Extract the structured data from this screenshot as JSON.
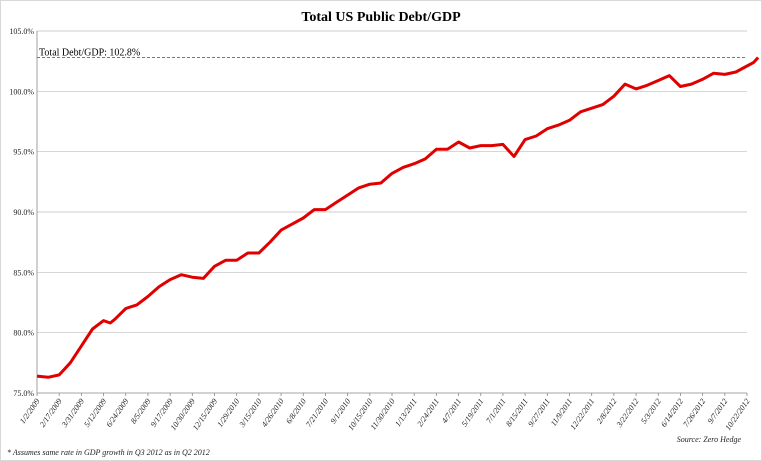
{
  "chart_data": {
    "type": "line",
    "title": "Total US Public Debt/GDP",
    "ylim": [
      75,
      105
    ],
    "yticks": [
      "75.0%",
      "80.0%",
      "85.0%",
      "90.0%",
      "95.0%",
      "100.0%",
      "105.0%"
    ],
    "ytick_values": [
      75,
      80,
      85,
      90,
      95,
      100,
      105
    ],
    "x_tick_labels": [
      "1/2/2009",
      "2/17/2009",
      "3/31/2009",
      "5/12/2009",
      "6/24/2009",
      "8/5/2009",
      "9/17/2009",
      "10/30/2009",
      "12/15/2009",
      "1/29/2010",
      "3/15/2010",
      "4/26/2010",
      "6/8/2010",
      "7/21/2010",
      "9/1/2010",
      "10/15/2010",
      "11/30/2010",
      "1/13/2011",
      "2/24/2011",
      "4/7/2011",
      "5/19/2011",
      "7/1/2011",
      "8/15/2011",
      "9/27/2011",
      "11/9/2011",
      "12/22/2011",
      "2/8/2012",
      "3/22/2012",
      "5/3/2012",
      "6/14/2012",
      "7/26/2012",
      "9/7/2012",
      "10/22/2012"
    ],
    "grid": true,
    "reference_line": {
      "value": 102.8,
      "label": "Total Debt/GDP: 102.8%",
      "color": "#e03030"
    },
    "series": [
      {
        "color": "#e00000",
        "x": [
          0,
          0.5,
          1,
          1.5,
          2,
          2.5,
          3,
          3.3,
          3.5,
          4,
          4.5,
          5,
          5.5,
          6,
          6.5,
          7,
          7.5,
          8,
          8.5,
          9,
          9.5,
          10,
          10.5,
          11,
          11.5,
          12,
          12.5,
          13,
          13.5,
          14,
          14.5,
          15,
          15.5,
          16,
          16.5,
          17,
          17.5,
          18,
          18.5,
          19,
          19.5,
          20,
          20.5,
          21,
          21.5,
          22,
          22.5,
          23,
          23.5,
          24,
          24.5,
          25,
          25.5,
          26,
          26.5,
          27,
          27.5,
          28,
          28.5,
          29,
          29.5,
          30,
          30.5,
          31,
          31.5,
          32,
          32.3,
          32.5
        ],
        "y": [
          76.4,
          76.3,
          76.5,
          77.5,
          78.9,
          80.3,
          81.0,
          80.8,
          81.1,
          82.0,
          82.3,
          83.0,
          83.8,
          84.4,
          84.8,
          84.6,
          84.5,
          85.5,
          86.0,
          86.0,
          86.6,
          86.6,
          87.5,
          88.5,
          89.0,
          89.5,
          90.2,
          90.2,
          90.8,
          91.4,
          92.0,
          92.3,
          92.4,
          93.2,
          93.7,
          94.0,
          94.4,
          95.2,
          95.2,
          95.8,
          95.3,
          95.5,
          95.5,
          95.6,
          94.6,
          96.0,
          96.3,
          96.9,
          97.2,
          97.6,
          98.3,
          98.6,
          98.9,
          99.6,
          100.6,
          100.2,
          100.5,
          100.9,
          101.3,
          100.4,
          100.6,
          101.0,
          101.5,
          101.4,
          101.6,
          102.1,
          102.4,
          102.8
        ]
      }
    ]
  },
  "footnote": "* Assumes same rate in GDP growth in Q3 2012 as in Q2 2012",
  "source": "Source: Zero Hedge"
}
